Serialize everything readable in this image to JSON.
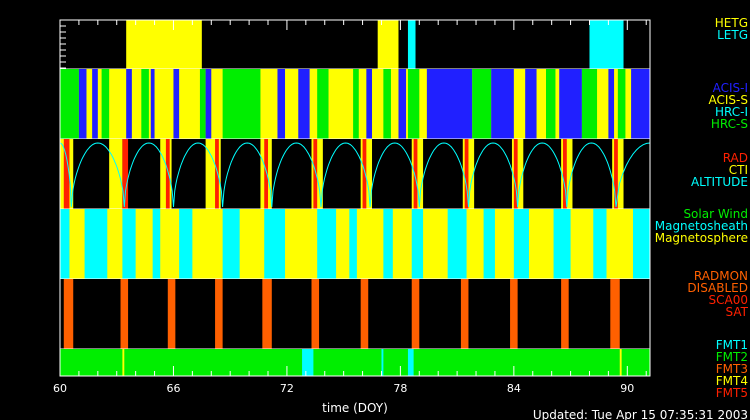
{
  "chart_data": {
    "type": "timeline",
    "xlabel": "time (DOY)",
    "x_range": [
      60,
      91.2
    ],
    "x_ticks": [
      60,
      66,
      72,
      78,
      84,
      90
    ],
    "updated_text": "Updated: Tue Apr 15 07:35:31 2003",
    "colors": {
      "white": "#ffffff",
      "yellow": "#ffff00",
      "cyan": "#00ffff",
      "blue": "#2020ff",
      "green": "#00ee00",
      "red": "#ff2000",
      "orange": "#ff6000",
      "darkorange": "#ff4400"
    },
    "panels": [
      {
        "name": "gratings",
        "legend": [
          {
            "text": "HETG",
            "color": "yellow"
          },
          {
            "text": "LETG",
            "color": "cyan"
          }
        ],
        "background": "black",
        "segments": [
          [
            63.5,
            67.5,
            "yellow"
          ],
          [
            76.8,
            77.9,
            "yellow"
          ],
          [
            78.4,
            78.8,
            "cyan"
          ],
          [
            88.0,
            89.8,
            "cyan"
          ]
        ]
      },
      {
        "name": "instrument",
        "legend": [
          {
            "text": "ACIS-I",
            "color": "blue"
          },
          {
            "text": "ACIS-S",
            "color": "yellow"
          },
          {
            "text": "HRC-I",
            "color": "cyan"
          },
          {
            "text": "HRC-S",
            "color": "green"
          }
        ],
        "background": "yellow",
        "segments": [
          [
            60.0,
            61.0,
            "green"
          ],
          [
            61.0,
            61.4,
            "blue"
          ],
          [
            61.7,
            62.0,
            "blue"
          ],
          [
            62.2,
            62.6,
            "green"
          ],
          [
            63.5,
            63.8,
            "blue"
          ],
          [
            64.3,
            64.7,
            "green"
          ],
          [
            64.8,
            65.0,
            "blue"
          ],
          [
            66.0,
            66.3,
            "blue"
          ],
          [
            67.4,
            67.7,
            "green"
          ],
          [
            67.7,
            68.0,
            "blue"
          ],
          [
            68.6,
            70.6,
            "green"
          ],
          [
            71.5,
            71.9,
            "blue"
          ],
          [
            72.6,
            73.2,
            "blue"
          ],
          [
            73.6,
            74.2,
            "green"
          ],
          [
            75.5,
            75.8,
            "green"
          ],
          [
            76.2,
            76.5,
            "blue"
          ],
          [
            77.1,
            77.5,
            "green"
          ],
          [
            77.9,
            78.3,
            "blue"
          ],
          [
            78.4,
            79.0,
            "green"
          ],
          [
            79.4,
            81.8,
            "blue"
          ],
          [
            81.8,
            82.8,
            "green"
          ],
          [
            82.8,
            84.0,
            "blue"
          ],
          [
            84.6,
            85.2,
            "blue"
          ],
          [
            85.7,
            86.2,
            "green"
          ],
          [
            86.4,
            87.6,
            "blue"
          ],
          [
            87.6,
            88.4,
            "green"
          ],
          [
            89.0,
            89.3,
            "blue"
          ],
          [
            89.5,
            89.9,
            "green"
          ],
          [
            90.2,
            91.2,
            "blue"
          ]
        ]
      },
      {
        "name": "radiation",
        "legend": [
          {
            "text": "RAD",
            "color": "red"
          },
          {
            "text": "CTI",
            "color": "yellow"
          },
          {
            "text": "ALTITUDE",
            "color": "cyan"
          }
        ],
        "background": "black",
        "segments": [
          [
            60.0,
            60.7,
            "yellow"
          ],
          [
            60.2,
            60.5,
            "red"
          ],
          [
            62.6,
            63.3,
            "yellow"
          ],
          [
            63.3,
            63.6,
            "red"
          ],
          [
            65.3,
            65.9,
            "yellow"
          ],
          [
            65.6,
            65.8,
            "red"
          ],
          [
            67.7,
            68.5,
            "yellow"
          ],
          [
            68.2,
            68.4,
            "red"
          ],
          [
            70.6,
            71.2,
            "yellow"
          ],
          [
            70.8,
            71.0,
            "red"
          ],
          [
            73.3,
            73.9,
            "yellow"
          ],
          [
            73.4,
            73.6,
            "red"
          ],
          [
            75.9,
            76.5,
            "yellow"
          ],
          [
            76.0,
            76.2,
            "red"
          ],
          [
            78.6,
            79.2,
            "yellow"
          ],
          [
            78.7,
            78.9,
            "red"
          ],
          [
            81.3,
            81.9,
            "yellow"
          ],
          [
            81.4,
            81.6,
            "red"
          ],
          [
            83.9,
            84.5,
            "yellow"
          ],
          [
            84.0,
            84.2,
            "red"
          ],
          [
            86.5,
            87.1,
            "yellow"
          ],
          [
            86.6,
            86.8,
            "red"
          ],
          [
            89.2,
            89.8,
            "yellow"
          ],
          [
            89.3,
            89.5,
            "red"
          ]
        ],
        "altitude_minima": [
          60.6,
          63.4,
          66.0,
          68.6,
          71.2,
          73.8,
          76.4,
          79.0,
          81.6,
          84.2,
          86.8,
          89.4
        ]
      },
      {
        "name": "region",
        "legend": [
          {
            "text": "Solar Wind",
            "color": "green"
          },
          {
            "text": "Magnetosheath",
            "color": "cyan"
          },
          {
            "text": "Magnetosphere",
            "color": "yellow"
          }
        ],
        "background": "yellow",
        "segments": [
          [
            60.0,
            60.5,
            "cyan"
          ],
          [
            61.3,
            62.5,
            "cyan"
          ],
          [
            63.3,
            64.0,
            "cyan"
          ],
          [
            64.9,
            65.3,
            "cyan"
          ],
          [
            66.3,
            67.0,
            "cyan"
          ],
          [
            68.6,
            69.5,
            "cyan"
          ],
          [
            70.8,
            71.9,
            "cyan"
          ],
          [
            73.6,
            74.6,
            "cyan"
          ],
          [
            75.3,
            75.7,
            "cyan"
          ],
          [
            77.1,
            77.6,
            "cyan"
          ],
          [
            78.6,
            79.2,
            "cyan"
          ],
          [
            80.5,
            81.5,
            "cyan"
          ],
          [
            82.4,
            83.0,
            "cyan"
          ],
          [
            84.0,
            84.8,
            "cyan"
          ],
          [
            86.1,
            87.0,
            "cyan"
          ],
          [
            88.2,
            88.9,
            "cyan"
          ],
          [
            90.3,
            91.2,
            "cyan"
          ]
        ]
      },
      {
        "name": "radmon",
        "legend": [
          {
            "text": "RADMON",
            "color": "orange"
          },
          {
            "text": "DISABLED",
            "color": "orange"
          },
          {
            "text": "SCA00",
            "color": "red"
          },
          {
            "text": "SAT",
            "color": "red"
          }
        ],
        "background": "black",
        "segments": [
          [
            60.2,
            60.7,
            "orange"
          ],
          [
            63.2,
            63.6,
            "orange"
          ],
          [
            65.7,
            66.1,
            "orange"
          ],
          [
            68.2,
            68.6,
            "orange"
          ],
          [
            70.7,
            71.2,
            "orange"
          ],
          [
            73.3,
            73.7,
            "orange"
          ],
          [
            75.9,
            76.3,
            "orange"
          ],
          [
            78.6,
            79.0,
            "orange"
          ],
          [
            81.2,
            81.6,
            "orange"
          ],
          [
            83.8,
            84.2,
            "orange"
          ],
          [
            86.5,
            86.9,
            "orange"
          ],
          [
            89.1,
            89.6,
            "orange"
          ]
        ]
      },
      {
        "name": "format",
        "legend": [
          {
            "text": "FMT1",
            "color": "cyan"
          },
          {
            "text": "FMT2",
            "color": "green"
          },
          {
            "text": "FMT3",
            "color": "orange"
          },
          {
            "text": "FMT4",
            "color": "yellow"
          },
          {
            "text": "FMT5",
            "color": "red"
          }
        ],
        "background": "green",
        "segments": [
          [
            72.8,
            73.4,
            "cyan"
          ],
          [
            77.0,
            77.1,
            "cyan"
          ],
          [
            78.4,
            78.7,
            "cyan"
          ],
          [
            63.3,
            63.4,
            "yellow"
          ],
          [
            89.6,
            89.7,
            "yellow"
          ]
        ]
      }
    ]
  }
}
